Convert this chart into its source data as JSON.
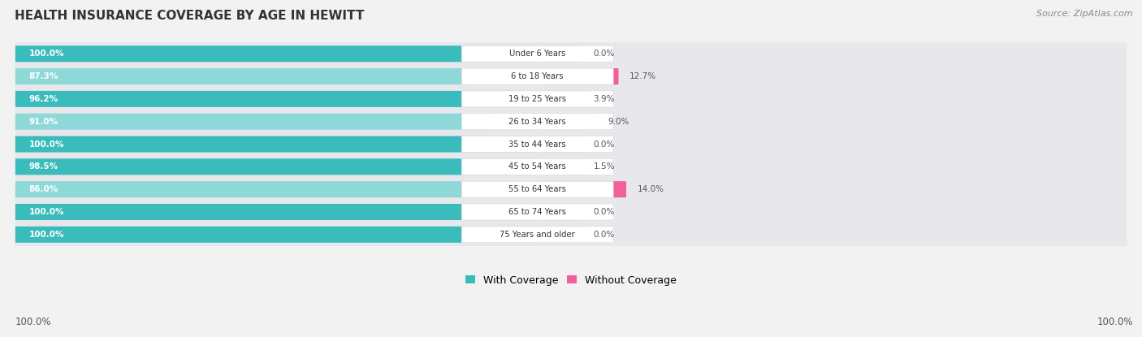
{
  "title": "HEALTH INSURANCE COVERAGE BY AGE IN HEWITT",
  "source": "Source: ZipAtlas.com",
  "categories": [
    "Under 6 Years",
    "6 to 18 Years",
    "19 to 25 Years",
    "26 to 34 Years",
    "35 to 44 Years",
    "45 to 54 Years",
    "55 to 64 Years",
    "65 to 74 Years",
    "75 Years and older"
  ],
  "with_coverage": [
    100.0,
    87.3,
    96.2,
    91.0,
    100.0,
    98.5,
    86.0,
    100.0,
    100.0
  ],
  "without_coverage": [
    0.0,
    12.7,
    3.9,
    9.0,
    0.0,
    1.5,
    14.0,
    0.0,
    0.0
  ],
  "color_with_dark": "#3BBCBC",
  "color_with_light": "#8ED8D8",
  "color_without_dark": "#F0609A",
  "color_without_light": "#F5A8C8",
  "row_bg": "#e8e8ec",
  "label_bg": "#ffffff",
  "legend_with": "With Coverage",
  "legend_without": "Without Coverage",
  "figsize": [
    14.06,
    4.15
  ],
  "dpi": 100,
  "bottom_left_label": "100.0%",
  "bottom_right_label": "100.0%"
}
